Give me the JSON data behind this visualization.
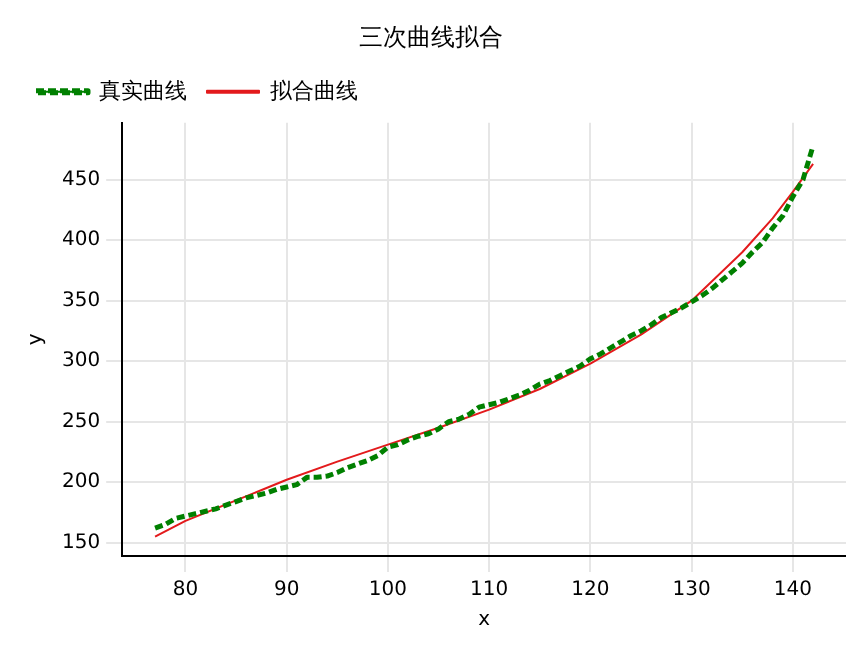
{
  "chart_data": {
    "type": "line",
    "title": "三次曲线拟合",
    "xlabel": "x",
    "ylabel": "y",
    "xlim": [
      73.75,
      145.25
    ],
    "ylim": [
      139,
      497
    ],
    "xticks": [
      80,
      90,
      100,
      110,
      120,
      130,
      140
    ],
    "yticks": [
      150,
      200,
      250,
      300,
      350,
      400,
      450
    ],
    "grid": true,
    "legend": "top left",
    "marker": "none",
    "series": [
      {
        "name": "真实曲线",
        "color": "#008000",
        "line_style": "dashed",
        "x": [
          77,
          78,
          79,
          80,
          81,
          82,
          83,
          84,
          85,
          86,
          87,
          88,
          89,
          90,
          91,
          92,
          93,
          94,
          95,
          96,
          97,
          98,
          99,
          100,
          101,
          102,
          103,
          104,
          105,
          106,
          107,
          108,
          109,
          110,
          111,
          112,
          113,
          114,
          115,
          116,
          117,
          118,
          119,
          120,
          121,
          122,
          123,
          124,
          125,
          126,
          127,
          128,
          129,
          130,
          131,
          132,
          133,
          134,
          135,
          136,
          137,
          138,
          139,
          140,
          141,
          142
        ],
        "values": [
          162,
          165,
          170,
          172,
          174,
          176,
          178,
          181,
          184,
          187,
          189,
          191,
          194,
          196,
          198,
          204,
          204,
          205,
          208,
          212,
          215,
          218,
          222,
          229,
          231,
          235,
          238,
          240,
          244,
          250,
          252,
          256,
          262,
          264,
          266,
          269,
          272,
          276,
          281,
          284,
          288,
          292,
          296,
          302,
          306,
          311,
          316,
          321,
          325,
          330,
          336,
          340,
          344,
          349,
          354,
          360,
          367,
          374,
          381,
          390,
          398,
          410,
          420,
          436,
          450,
          478
        ]
      },
      {
        "name": "拟合曲线",
        "color": "#e31a1c",
        "line_style": "solid",
        "x": [
          77,
          80,
          85,
          90,
          95,
          100,
          105,
          110,
          115,
          120,
          125,
          130,
          135,
          138,
          140,
          142
        ],
        "values": [
          155,
          168,
          185,
          202,
          217,
          231,
          245,
          260,
          277,
          298,
          322,
          350,
          390,
          418,
          440,
          463
        ]
      }
    ]
  }
}
